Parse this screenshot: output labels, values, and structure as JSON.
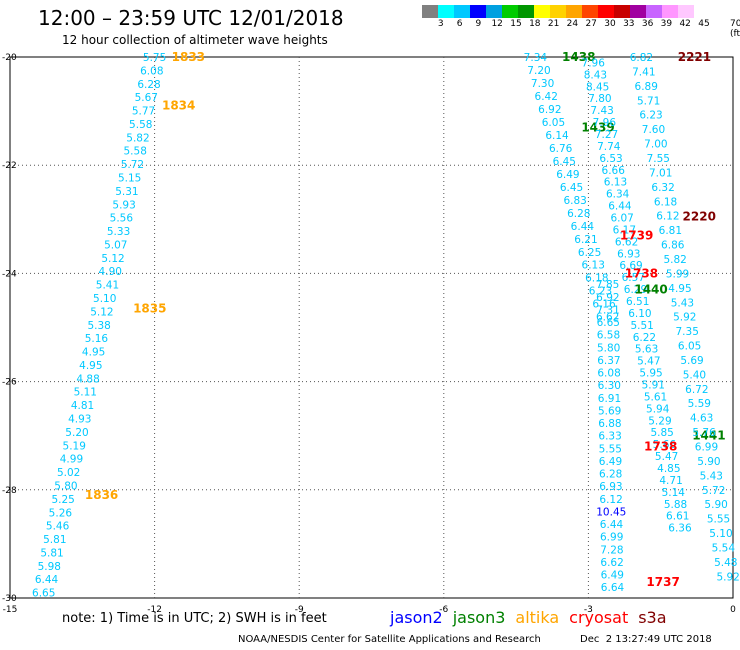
{
  "header": {
    "title": "12:00 – 23:59 UTC 12/01/2018",
    "subtitle": "12 hour collection of altimeter wave heights"
  },
  "colorbar": {
    "colors": [
      "#808080",
      "#00ffff",
      "#00c8ff",
      "#0000ff",
      "#00a0e0",
      "#00cc00",
      "#009600",
      "#ffff00",
      "#ffd200",
      "#ffa500",
      "#ff4500",
      "#ff0000",
      "#c80000",
      "#a000a0",
      "#c864ff",
      "#ff96ff",
      "#ffc8ff"
    ],
    "labels": [
      "3",
      "6",
      "9",
      "12",
      "15",
      "18",
      "21",
      "24",
      "27",
      "30",
      "33",
      "36",
      "39",
      "42",
      "45",
      "70 (ft)"
    ]
  },
  "footer": {
    "note": "note: 1) Time is in UTC; 2) SWH is in feet",
    "credit": "NOAA/NESDIS Center for Satellite Applications and Research",
    "timestamp": "Dec  2 13:27:49 UTC 2018"
  },
  "satellites": [
    {
      "name": "jason2",
      "color": "#0000ff"
    },
    {
      "name": "jason3",
      "color": "#008000"
    },
    {
      "name": "altika",
      "color": "#ffa500"
    },
    {
      "name": "cryosat",
      "color": "#ff0000"
    },
    {
      "name": "s3a",
      "color": "#800000"
    }
  ],
  "chart_data": {
    "type": "scatter",
    "xlim": [
      -15,
      0
    ],
    "ylim": [
      -30,
      -20
    ],
    "x_ticks": [
      "-15",
      "-12",
      "-9",
      "-6",
      "-3",
      "0"
    ],
    "y_ticks": [
      "-20",
      "-22",
      "-24",
      "-26",
      "-28",
      "-30"
    ],
    "grid": "dotted",
    "tracks": [
      {
        "satellite": "altika",
        "start": [
          -12.0,
          -20.0
        ],
        "end": [
          -14.3,
          -29.9
        ],
        "values": [
          "5.75",
          "6.08",
          "6.28",
          "5.67",
          "5.77",
          "5.58",
          "5.82",
          "5.58",
          "5.72",
          "5.15",
          "5.31",
          "5.93",
          "5.56",
          "5.33",
          "5.07",
          "5.12",
          "4.90",
          "5.41",
          "5.10",
          "5.12",
          "5.38",
          "5.16",
          "4.95",
          "4.95",
          "4.88",
          "5.11",
          "4.81",
          "4.93",
          "5.20",
          "5.19",
          "4.99",
          "5.02",
          "5.80",
          "5.25",
          "5.26",
          "5.46",
          "5.81",
          "5.81",
          "5.98",
          "6.44",
          "6.65"
        ],
        "value_color": "#00c8ff",
        "passes": [
          {
            "label": "1833",
            "lon": -11.3,
            "lat": -20.0,
            "color": "#ffa500"
          },
          {
            "label": "1834",
            "lon": -11.5,
            "lat": -20.9,
            "color": "#ffa500"
          },
          {
            "label": "1835",
            "lon": -12.1,
            "lat": -24.65,
            "color": "#ffa500"
          },
          {
            "label": "1836",
            "lon": -13.1,
            "lat": -28.1,
            "color": "#ffa500"
          }
        ]
      },
      {
        "satellite": "jason3",
        "start": [
          -4.1,
          -20.0
        ],
        "end": [
          -2.6,
          -24.8
        ],
        "values": [
          "7.34",
          "7.20",
          "7.30",
          "6.42",
          "6.92",
          "6.05",
          "6.14",
          "6.76",
          "6.45",
          "6.49",
          "6.45",
          "6.83",
          "6.28",
          "6.44",
          "6.21",
          "6.25",
          "6.13",
          "6.18",
          "6.23",
          "6.16",
          "6.62"
        ],
        "value_color": "#00c8ff",
        "passes": [
          {
            "label": "1438",
            "lon": -3.2,
            "lat": -20.0,
            "color": "#008000"
          },
          {
            "label": "1439",
            "lon": -2.8,
            "lat": -21.3,
            "color": "#008000"
          }
        ]
      },
      {
        "satellite": "jason3",
        "start": [
          -2.9,
          -20.1
        ],
        "end": [
          -1.1,
          -28.7
        ],
        "values": [
          "7.96",
          "8.43",
          "8.45",
          "7.80",
          "7.43",
          "7.96",
          "7.27",
          "7.74",
          "6.53",
          "6.66",
          "6.13",
          "6.34",
          "6.44",
          "6.07",
          "6.17",
          "6.62",
          "6.93",
          "6.69",
          "6.57",
          "6.29",
          "6.51",
          "6.10",
          "5.51",
          "6.22",
          "5.63",
          "5.47",
          "5.95",
          "5.91",
          "5.61",
          "5.94",
          "5.29",
          "5.85",
          "5.66",
          "5.47",
          "4.85",
          "4.71",
          "5.14",
          "5.88",
          "6.61",
          "6.36"
        ],
        "value_color": "#00c8ff",
        "passes": [
          {
            "label": "1440",
            "lon": -1.7,
            "lat": -24.3,
            "color": "#008000"
          },
          {
            "label": "1441",
            "lon": -0.5,
            "lat": -27.0,
            "color": "#008000"
          }
        ]
      },
      {
        "satellite": "cryosat",
        "start": [
          -2.6,
          -24.2
        ],
        "end": [
          -2.5,
          -29.8
        ],
        "values": [
          "7.85",
          "6.92",
          "7.31",
          "6.65",
          "6.58",
          "5.80",
          "6.37",
          "6.08",
          "6.30",
          "6.91",
          "5.69",
          "6.88",
          "6.33",
          "5.55",
          "6.49",
          "6.28",
          "6.93",
          "6.12",
          "10.45",
          "6.44",
          "6.99",
          "7.28",
          "6.62",
          "6.49",
          "6.64"
        ],
        "value_color": "#00c8ff",
        "passes": [
          {
            "label": "1739",
            "lon": -2.0,
            "lat": -23.3,
            "color": "#ff0000"
          },
          {
            "label": "1738",
            "lon": -1.9,
            "lat": -24.0,
            "color": "#ff0000"
          },
          {
            "label": "1738",
            "lon": -1.5,
            "lat": -27.2,
            "color": "#ff0000"
          },
          {
            "label": "1737",
            "lon": -1.45,
            "lat": -29.7,
            "color": "#ff0000"
          }
        ]
      },
      {
        "satellite": "s3a",
        "start": [
          -1.9,
          -20.0
        ],
        "end": [
          -0.1,
          -29.6
        ],
        "values": [
          "6.82",
          "7.41",
          "6.89",
          "5.71",
          "6.23",
          "7.60",
          "7.00",
          "7.55",
          "7.01",
          "6.32",
          "6.18",
          "6.12",
          "6.81",
          "6.86",
          "5.82",
          "5.99",
          "4.95",
          "5.43",
          "5.92",
          "7.35",
          "6.05",
          "5.69",
          "5.40",
          "6.72",
          "5.59",
          "4.63",
          "5.76",
          "6.99",
          "5.90",
          "5.43",
          "5.72",
          "5.90",
          "5.55",
          "5.10",
          "5.54",
          "5.48",
          "5.92"
        ],
        "value_color": "#00c8ff",
        "passes": [
          {
            "label": "2221",
            "lon": -0.8,
            "lat": -20.0,
            "color": "#800000"
          },
          {
            "label": "2220",
            "lon": -0.7,
            "lat": -22.95,
            "color": "#800000"
          }
        ]
      }
    ]
  }
}
